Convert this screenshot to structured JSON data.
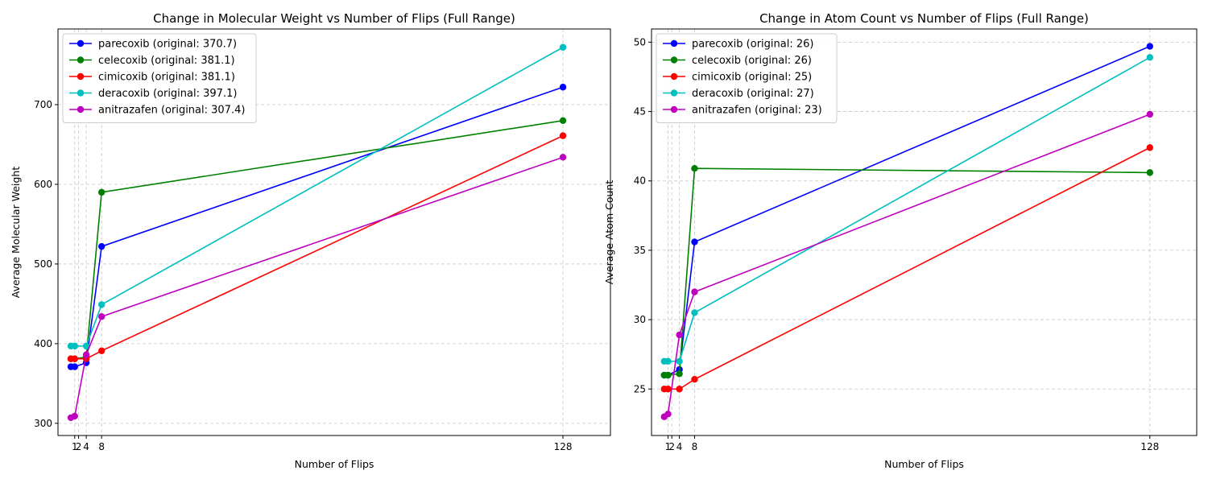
{
  "chart_data": [
    {
      "type": "line",
      "title": "Change in Molecular Weight vs Number of Flips (Full Range)",
      "xlabel": "Number of Flips",
      "ylabel": "Average Molecular Weight",
      "x_ticks": [
        1,
        2,
        4,
        8,
        128
      ],
      "x_tick_labels": [
        "1",
        "2",
        "4",
        "8",
        "128"
      ],
      "xlim": [
        -3.35,
        140.35
      ],
      "y_ticks": [
        300,
        400,
        500,
        600,
        700
      ],
      "y_tick_labels": [
        "300",
        "400",
        "500",
        "600",
        "700"
      ],
      "ylim": [
        284.7,
        795.0
      ],
      "grid": true,
      "legend_position": "top-left",
      "series": [
        {
          "name": "parecoxib (original: 370.7)",
          "color": "#0000ff",
          "x": [
            0,
            1,
            4,
            8,
            128
          ],
          "y": [
            371,
            371,
            376,
            522,
            722
          ]
        },
        {
          "name": "celecoxib (original: 381.1)",
          "color": "#008000",
          "x": [
            0,
            1,
            4,
            8,
            128
          ],
          "y": [
            381,
            381,
            383,
            590,
            680
          ]
        },
        {
          "name": "cimicoxib (original: 381.1)",
          "color": "#ff0000",
          "x": [
            0,
            1,
            4,
            8,
            128
          ],
          "y": [
            381,
            381,
            381,
            391,
            661
          ]
        },
        {
          "name": "deracoxib (original: 397.1)",
          "color": "#00bfbf",
          "x": [
            0,
            1,
            4,
            8,
            128
          ],
          "y": [
            397,
            397,
            397,
            449,
            772
          ]
        },
        {
          "name": "anitrazafen (original: 307.4)",
          "color": "#bf00bf",
          "x": [
            0,
            1,
            4,
            8,
            128
          ],
          "y": [
            307,
            309,
            386,
            434,
            634
          ]
        }
      ]
    },
    {
      "type": "line",
      "title": "Change in Atom Count vs Number of Flips (Full Range)",
      "xlabel": "Number of Flips",
      "ylabel": "Average Atom Count",
      "x_ticks": [
        1,
        2,
        4,
        8,
        128
      ],
      "x_tick_labels": [
        "1",
        "2",
        "4",
        "8",
        "128"
      ],
      "xlim": [
        -3.35,
        140.35
      ],
      "y_ticks": [
        25,
        30,
        35,
        40,
        45,
        50
      ],
      "y_tick_labels": [
        "25",
        "30",
        "35",
        "40",
        "45",
        "50"
      ],
      "ylim": [
        21.65,
        50.95
      ],
      "grid": true,
      "legend_position": "top-left",
      "series": [
        {
          "name": "parecoxib (original: 26)",
          "color": "#0000ff",
          "x": [
            0,
            1,
            4,
            8,
            128
          ],
          "y": [
            26.0,
            26.0,
            26.4,
            35.6,
            49.7
          ]
        },
        {
          "name": "celecoxib (original: 26)",
          "color": "#008000",
          "x": [
            0,
            1,
            4,
            8,
            128
          ],
          "y": [
            26.0,
            26.0,
            26.1,
            40.9,
            40.6
          ]
        },
        {
          "name": "cimicoxib (original: 25)",
          "color": "#ff0000",
          "x": [
            0,
            1,
            4,
            8,
            128
          ],
          "y": [
            25.0,
            25.0,
            25.0,
            25.7,
            42.4
          ]
        },
        {
          "name": "deracoxib (original: 27)",
          "color": "#00bfbf",
          "x": [
            0,
            1,
            4,
            8,
            128
          ],
          "y": [
            27.0,
            27.0,
            27.0,
            30.5,
            48.9
          ]
        },
        {
          "name": "anitrazafen (original: 23)",
          "color": "#bf00bf",
          "x": [
            0,
            1,
            4,
            8,
            128
          ],
          "y": [
            23.0,
            23.2,
            28.9,
            32.0,
            44.8
          ]
        }
      ]
    }
  ]
}
